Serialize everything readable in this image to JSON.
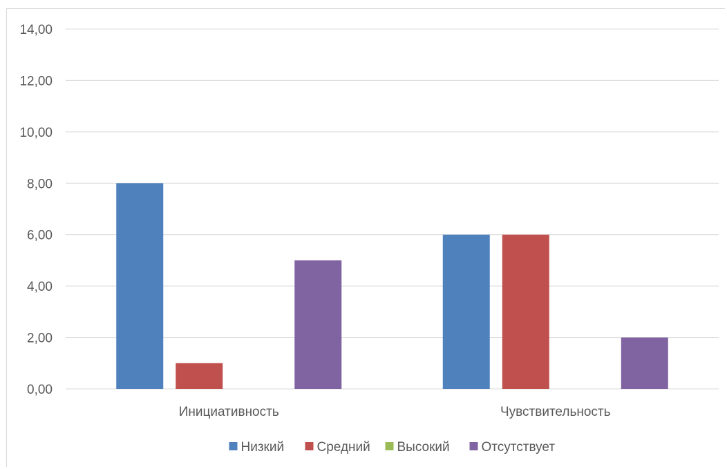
{
  "chart_data": {
    "type": "bar",
    "categories": [
      "Инициативность",
      "Чувствительность"
    ],
    "series": [
      {
        "name": "Низкий",
        "values": [
          8,
          6
        ],
        "color": "#4f81bd"
      },
      {
        "name": "Средний",
        "values": [
          1,
          6
        ],
        "color": "#c0504d"
      },
      {
        "name": "Высокий",
        "values": [
          0,
          0
        ],
        "color": "#9bbb59"
      },
      {
        "name": "Отсутствует",
        "values": [
          5,
          2
        ],
        "color": "#8064a2"
      }
    ],
    "yticks": [
      "0,00",
      "2,00",
      "4,00",
      "6,00",
      "8,00",
      "10,00",
      "12,00",
      "14,00"
    ],
    "ylim": [
      0,
      14
    ],
    "grid": true,
    "legend": "bottom",
    "title": "",
    "xlabel": "",
    "ylabel": ""
  }
}
